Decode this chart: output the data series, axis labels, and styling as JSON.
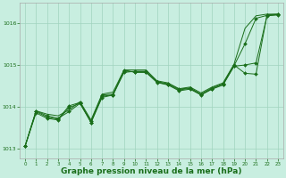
{
  "background_color": "#c8eee0",
  "grid_color": "#a0d4be",
  "line_color": "#1a6e1a",
  "marker_color": "#1a6e1a",
  "xlabel": "Graphe pression niveau de la mer (hPa)",
  "xlabel_fontsize": 6.5,
  "xlim": [
    -0.5,
    23.5
  ],
  "ylim": [
    1012.75,
    1016.5
  ],
  "yticks": [
    1013,
    1014,
    1015,
    1016
  ],
  "xticks": [
    0,
    1,
    2,
    3,
    4,
    5,
    6,
    7,
    8,
    9,
    10,
    11,
    12,
    13,
    14,
    15,
    16,
    17,
    18,
    19,
    20,
    21,
    22,
    23
  ],
  "series_with_markers": [
    [
      1013.05,
      1013.9,
      1013.78,
      1013.72,
      1013.88,
      1014.08,
      1013.62,
      1014.22,
      1014.28,
      1014.82,
      1014.85,
      1014.85,
      1014.6,
      1014.55,
      1014.42,
      1014.45,
      1014.3,
      1014.45,
      1014.55,
      1015.0,
      1014.8,
      1014.78,
      1016.2,
      1016.22
    ],
    [
      1013.05,
      1013.85,
      1013.72,
      1013.68,
      1013.98,
      1014.08,
      1013.62,
      1014.25,
      1014.28,
      1014.88,
      1014.82,
      1014.82,
      1014.58,
      1014.52,
      1014.38,
      1014.42,
      1014.28,
      1014.42,
      1014.52,
      1014.97,
      1015.0,
      1015.05,
      1016.18,
      1016.2
    ],
    [
      1013.05,
      1013.88,
      1013.75,
      1013.7,
      1014.02,
      1014.1,
      1013.65,
      1014.28,
      1014.3,
      1014.85,
      1014.84,
      1014.84,
      1014.59,
      1014.53,
      1014.4,
      1014.44,
      1014.29,
      1014.43,
      1014.53,
      1014.98,
      1015.51,
      1016.12,
      1016.19,
      1016.21
    ]
  ],
  "series_no_markers": [
    [
      1013.05,
      1013.9,
      1013.82,
      1013.78,
      1013.92,
      1014.12,
      1013.68,
      1014.3,
      1014.35,
      1014.88,
      1014.88,
      1014.88,
      1014.62,
      1014.57,
      1014.43,
      1014.47,
      1014.33,
      1014.47,
      1014.57,
      1015.02,
      1015.88,
      1016.18,
      1016.22,
      1016.22
    ]
  ]
}
